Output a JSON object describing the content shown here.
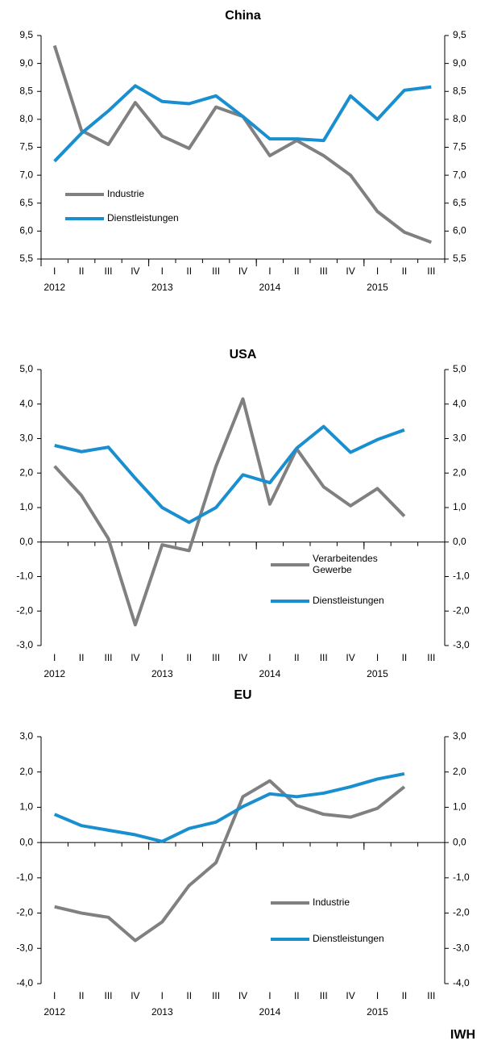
{
  "chart_data": [
    {
      "type": "line",
      "title": "China",
      "categories": [
        "I",
        "II",
        "III",
        "IV",
        "I",
        "II",
        "III",
        "IV",
        "I",
        "II",
        "III",
        "IV",
        "I",
        "II",
        "III"
      ],
      "category_groups": [
        {
          "label": "2012",
          "size": 4
        },
        {
          "label": "2013",
          "size": 4
        },
        {
          "label": "2014",
          "size": 4
        },
        {
          "label": "2015",
          "size": 3
        }
      ],
      "series": [
        {
          "name": "Industrie",
          "color": "#808080",
          "values": [
            9.32,
            7.8,
            7.55,
            8.3,
            7.7,
            7.48,
            8.22,
            8.05,
            7.35,
            7.62,
            7.35,
            7.0,
            6.35,
            5.98,
            5.8
          ]
        },
        {
          "name": "Dienstleistungen",
          "color": "#1a8fd0",
          "values": [
            7.25,
            7.75,
            8.15,
            8.6,
            8.32,
            8.28,
            8.42,
            8.05,
            7.65,
            7.65,
            7.62,
            8.42,
            8.0,
            8.52,
            8.58
          ]
        }
      ],
      "ylim": [
        5.5,
        9.5
      ],
      "yticks": [
        {
          "value": 5.5,
          "label": "5,5"
        },
        {
          "value": 6.0,
          "label": "6,0"
        },
        {
          "value": 6.5,
          "label": "6,5"
        },
        {
          "value": 7.0,
          "label": "7,0"
        },
        {
          "value": 7.5,
          "label": "7,5"
        },
        {
          "value": 8.0,
          "label": "8,0"
        },
        {
          "value": 8.5,
          "label": "8,5"
        },
        {
          "value": 9.0,
          "label": "9,0"
        },
        {
          "value": 9.5,
          "label": "9,5"
        }
      ],
      "legend_position": "lower left"
    },
    {
      "type": "line",
      "title": "USA",
      "categories": [
        "I",
        "II",
        "III",
        "IV",
        "I",
        "II",
        "III",
        "IV",
        "I",
        "II",
        "III",
        "IV",
        "I",
        "II",
        "III"
      ],
      "category_groups": [
        {
          "label": "2012",
          "size": 4
        },
        {
          "label": "2013",
          "size": 4
        },
        {
          "label": "2014",
          "size": 4
        },
        {
          "label": "2015",
          "size": 3
        }
      ],
      "series": [
        {
          "name": "Verarbeitendes Gewerbe",
          "color": "#808080",
          "values": [
            2.2,
            1.35,
            0.1,
            -2.4,
            -0.08,
            -0.25,
            2.2,
            4.15,
            1.1,
            2.7,
            1.6,
            1.05,
            1.55,
            0.75,
            null
          ]
        },
        {
          "name": "Dienstleistungen",
          "color": "#1a8fd0",
          "values": [
            2.8,
            2.62,
            2.75,
            1.85,
            1.0,
            0.57,
            1.0,
            1.95,
            1.72,
            2.72,
            3.35,
            2.6,
            2.97,
            3.25,
            null
          ]
        }
      ],
      "ylim": [
        -3,
        5
      ],
      "yticks": [
        {
          "value": -3,
          "label": "-3,0"
        },
        {
          "value": -2,
          "label": "-2,0"
        },
        {
          "value": -1,
          "label": "-1,0"
        },
        {
          "value": 0,
          "label": "0,0"
        },
        {
          "value": 1,
          "label": "1,0"
        },
        {
          "value": 2,
          "label": "2,0"
        },
        {
          "value": 3,
          "label": "3,0"
        },
        {
          "value": 4,
          "label": "4,0"
        },
        {
          "value": 5,
          "label": "5,0"
        }
      ],
      "legend_position": "lower right"
    },
    {
      "type": "line",
      "title": "EU",
      "categories": [
        "I",
        "II",
        "III",
        "IV",
        "I",
        "II",
        "III",
        "IV",
        "I",
        "II",
        "III",
        "IV",
        "I",
        "II",
        "III"
      ],
      "category_groups": [
        {
          "label": "2012",
          "size": 4
        },
        {
          "label": "2013",
          "size": 4
        },
        {
          "label": "2014",
          "size": 4
        },
        {
          "label": "2015",
          "size": 3
        }
      ],
      "series": [
        {
          "name": "Industrie",
          "color": "#808080",
          "values": [
            -1.82,
            -2.0,
            -2.12,
            -2.78,
            -2.25,
            -1.22,
            -0.57,
            1.3,
            1.75,
            1.05,
            0.8,
            0.72,
            0.97,
            1.58,
            null
          ]
        },
        {
          "name": "Dienstleistungen",
          "color": "#1a8fd0",
          "values": [
            0.8,
            0.48,
            0.35,
            0.22,
            0.03,
            0.4,
            0.58,
            1.02,
            1.38,
            1.3,
            1.4,
            1.58,
            1.8,
            1.95,
            null
          ]
        }
      ],
      "ylim": [
        -4,
        3
      ],
      "yticks": [
        {
          "value": -4,
          "label": "-4,0"
        },
        {
          "value": -3,
          "label": "-3,0"
        },
        {
          "value": -2,
          "label": "-2,0"
        },
        {
          "value": -1,
          "label": "-1,0"
        },
        {
          "value": 0,
          "label": "0,0"
        },
        {
          "value": 1,
          "label": "1,0"
        },
        {
          "value": 2,
          "label": "2,0"
        },
        {
          "value": 3,
          "label": "3,0"
        }
      ],
      "legend_position": "lower right"
    }
  ],
  "source": "IWH"
}
